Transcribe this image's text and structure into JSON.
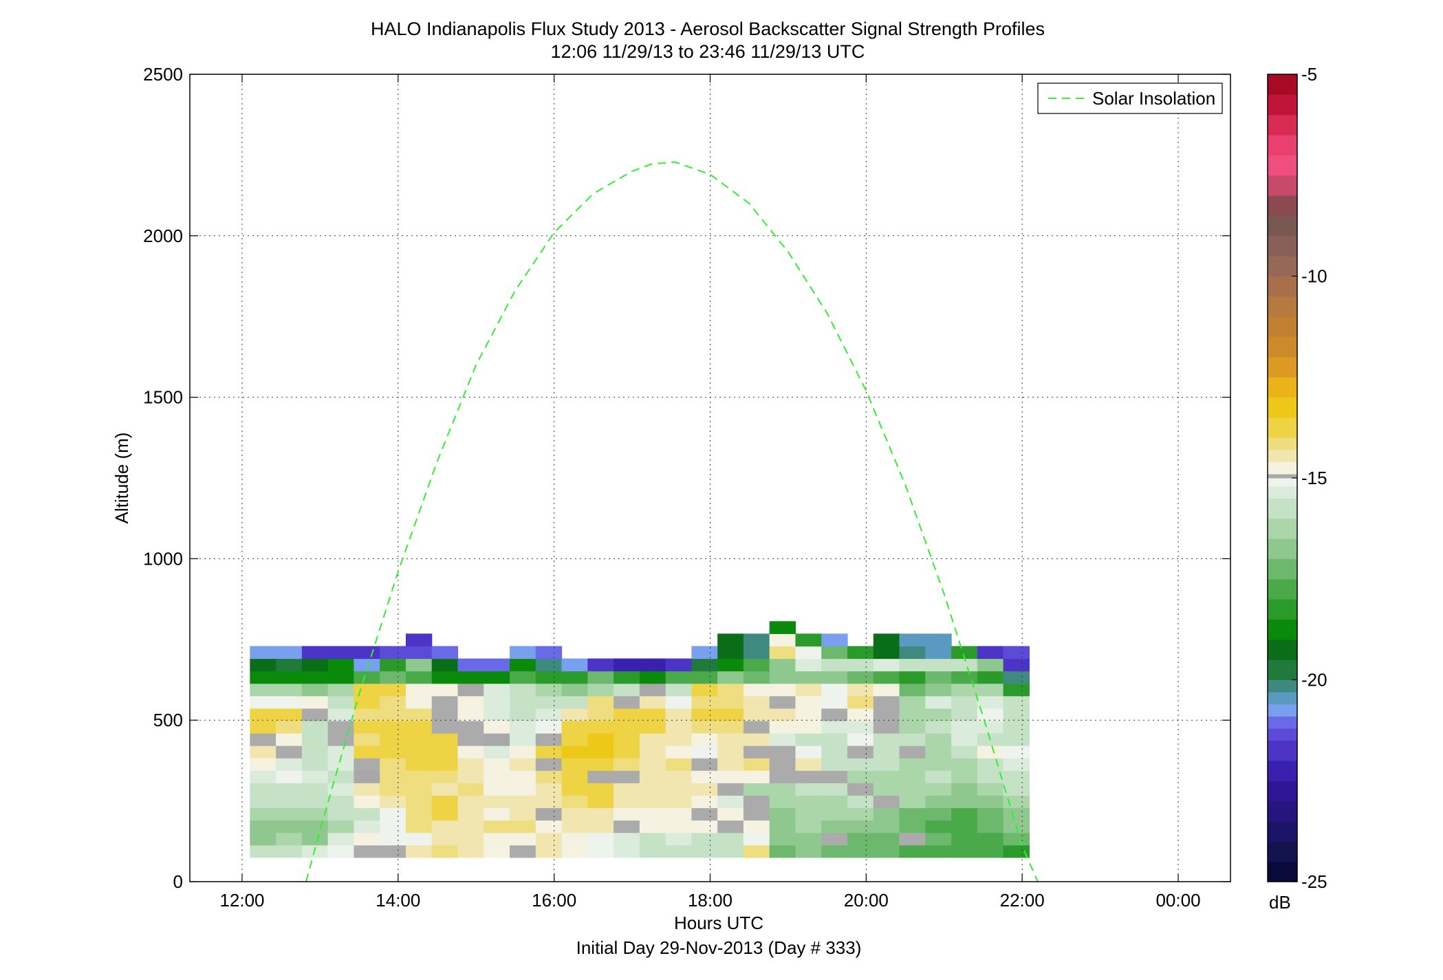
{
  "chart_data": {
    "type": "heatmap",
    "title": "HALO Indianapolis Flux Study 2013 - Aerosol Backscatter Signal Strength Profiles",
    "subtitle": "12:06 11/29/13 to 23:46 11/29/13  UTC",
    "xlabel": "Hours UTC",
    "xlabel2": "Initial Day 29-Nov-2013 (Day # 333)",
    "ylabel": "Altitude (m)",
    "x_unit": "hours UTC",
    "xlim": [
      11.33,
      24.67
    ],
    "ylim": [
      0,
      2500
    ],
    "x_ticks": [
      {
        "value": 12,
        "label": "12:00"
      },
      {
        "value": 14,
        "label": "14:00"
      },
      {
        "value": 16,
        "label": "16:00"
      },
      {
        "value": 18,
        "label": "18:00"
      },
      {
        "value": 20,
        "label": "20:00"
      },
      {
        "value": 22,
        "label": "22:00"
      },
      {
        "value": 24,
        "label": "00:00"
      }
    ],
    "y_ticks": [
      0,
      500,
      1000,
      1500,
      2000,
      2500
    ],
    "grid": true,
    "legend_position": "top-right",
    "legend": [
      {
        "label": "Solar Insolation",
        "color": "#33ee33",
        "style": "dashed"
      }
    ],
    "colorbar": {
      "label": "dB",
      "min": -25,
      "max": -5,
      "ticks": [
        -5,
        -10,
        -15,
        -20,
        -25
      ],
      "bands": [
        [
          -25,
          -24.5,
          "#0a0a3a"
        ],
        [
          -24.5,
          -24,
          "#14124f"
        ],
        [
          -24,
          -23.5,
          "#1c1466"
        ],
        [
          -23.5,
          -23,
          "#25157c"
        ],
        [
          -23,
          -22.5,
          "#2e1796"
        ],
        [
          -22.5,
          -22,
          "#3a20ae"
        ],
        [
          -22,
          -21.5,
          "#4b34c6"
        ],
        [
          -21.5,
          -21.2,
          "#5c4ad8"
        ],
        [
          -21.2,
          -20.9,
          "#6a6ae8"
        ],
        [
          -20.9,
          -20.6,
          "#78a0ee"
        ],
        [
          -20.6,
          -20.3,
          "#5a9ac0"
        ],
        [
          -20.3,
          -20,
          "#3e8a80"
        ],
        [
          -20,
          -19.5,
          "#1f7a3c"
        ],
        [
          -19.5,
          -19,
          "#0a6e18"
        ],
        [
          -19,
          -18.5,
          "#0a8a0a"
        ],
        [
          -18.5,
          -18,
          "#2a9a2a"
        ],
        [
          -18,
          -17.5,
          "#4aaa4a"
        ],
        [
          -17.5,
          -17,
          "#6cb86c"
        ],
        [
          -17,
          -16.5,
          "#8ec88e"
        ],
        [
          -16.5,
          -16,
          "#aad6aa"
        ],
        [
          -16,
          -15.5,
          "#c6e2c6"
        ],
        [
          -15.5,
          -15.2,
          "#dcecdc"
        ],
        [
          -15.2,
          -15,
          "#eef3ee"
        ],
        [
          -15,
          -14.9,
          "#a8a8a8"
        ],
        [
          -14.9,
          -14.6,
          "#f6f2e2"
        ],
        [
          -14.6,
          -14.3,
          "#f1e6b0"
        ],
        [
          -14.3,
          -14,
          "#eede80"
        ],
        [
          -14,
          -13.5,
          "#eed444"
        ],
        [
          -13.5,
          -13,
          "#eec818"
        ],
        [
          -13,
          -12.5,
          "#ecb21a"
        ],
        [
          -12.5,
          -12,
          "#dc9a22"
        ],
        [
          -12,
          -11.5,
          "#cc8a28"
        ],
        [
          -11.5,
          -11,
          "#c08030"
        ],
        [
          -11,
          -10.5,
          "#b47a3e"
        ],
        [
          -10.5,
          -10,
          "#a8704a"
        ],
        [
          -10,
          -9.5,
          "#986856"
        ],
        [
          -9.5,
          -9,
          "#886058"
        ],
        [
          -9,
          -8.5,
          "#7a5852"
        ],
        [
          -8.5,
          -8,
          "#8a4a50"
        ],
        [
          -8,
          -7.5,
          "#c84a6a"
        ],
        [
          -7.5,
          -7,
          "#f04e7e"
        ],
        [
          -7,
          -6.5,
          "#ea4070"
        ],
        [
          -6.5,
          -6,
          "#d82a52"
        ],
        [
          -6,
          -5.5,
          "#c01438"
        ],
        [
          -5.5,
          -5,
          "#a80a24"
        ]
      ]
    },
    "heatmap": {
      "x_start": 12.1,
      "x_step": 0.333,
      "y_start": 75,
      "y_step": 38.5,
      "rows_order": "bottom-to-top",
      "cols_per_row": 30,
      "values": [
        [
          -16.0,
          -15.7,
          -15.4,
          -15.2,
          -14.9,
          -14.9,
          -14.6,
          -14.2,
          -14.4,
          -14.8,
          -14.6,
          -14.6,
          -14.9,
          -15.1,
          -15.4,
          -16.0,
          -15.8,
          -15.9,
          -16.0,
          -14.1,
          -17.2,
          -17.0,
          -17.5,
          -17.5,
          -17.5,
          -17.8,
          -17.8,
          -17.8,
          -17.8,
          -18.1
        ],
        [
          -16.8,
          -16.4,
          -16.6,
          -15.4,
          -14.9,
          -15.1,
          -15.1,
          -14.6,
          -14.6,
          -14.8,
          -14.8,
          -14.6,
          -14.8,
          -15.1,
          -15.4,
          -16.0,
          -15.4,
          -15.6,
          -15.8,
          -15.2,
          -16.8,
          -16.6,
          -17.1,
          -17.3,
          -17.3,
          -17.7,
          -17.5,
          -17.7,
          -17.7,
          -17.5
        ],
        [
          -16.8,
          -16.8,
          -16.8,
          -16.4,
          -15.4,
          -15.2,
          -14.3,
          -14.5,
          -14.4,
          -14.1,
          -14.2,
          -14.9,
          -14.6,
          -14.5,
          -14.3,
          -14.8,
          -14.8,
          -14.9,
          -15.3,
          -14.7,
          -16.8,
          -16.4,
          -16.6,
          -16.9,
          -16.8,
          -17.3,
          -17.6,
          -17.7,
          -17.3,
          -16.8
        ],
        [
          -16.4,
          -16.4,
          -16.4,
          -16.0,
          -15.6,
          -15.2,
          -14.3,
          -13.9,
          -14.6,
          -14.8,
          -14.5,
          -15.0,
          -14.6,
          -14.5,
          -14.9,
          -14.8,
          -14.7,
          -14.6,
          -14.9,
          -14.7,
          -16.8,
          -16.4,
          -16.4,
          -16.4,
          -16.6,
          -17.1,
          -17.5,
          -17.7,
          -17.2,
          -16.8
        ],
        [
          -16.0,
          -16.0,
          -16.0,
          -15.6,
          -14.8,
          -14.6,
          -14.1,
          -13.7,
          -14.4,
          -14.5,
          -14.6,
          -14.5,
          -14.1,
          -14.0,
          -14.5,
          -14.6,
          -14.6,
          -14.9,
          -15.3,
          -16.6,
          -16.4,
          -16.2,
          -16.3,
          -16.0,
          -16.4,
          -16.4,
          -16.6,
          -16.8,
          -16.8,
          -16.4
        ],
        [
          -15.6,
          -15.6,
          -15.6,
          -15.3,
          -14.6,
          -14.3,
          -14.1,
          -14.4,
          -14.2,
          -14.9,
          -14.9,
          -14.6,
          -13.9,
          -13.9,
          -14.5,
          -14.4,
          -14.4,
          -14.6,
          -14.9,
          -16.2,
          -16.2,
          -15.8,
          -15.8,
          -15.6,
          -16.4,
          -16.4,
          -16.4,
          -16.6,
          -16.4,
          -15.8
        ],
        [
          -15.4,
          -15.1,
          -15.4,
          -15.6,
          -15.0,
          -14.3,
          -14.3,
          -14.2,
          -14.5,
          -14.8,
          -14.9,
          -14.1,
          -14.0,
          -14.1,
          -14.2,
          -14.4,
          -14.5,
          -14.9,
          -14.9,
          -14.9,
          -15.6,
          -14.9,
          -15.8,
          -16.2,
          -16.2,
          -16.4,
          -16.0,
          -16.4,
          -16.0,
          -15.6
        ],
        [
          -14.9,
          -15.4,
          -15.6,
          -15.3,
          -14.2,
          -14.2,
          -13.9,
          -14.0,
          -14.6,
          -14.8,
          -14.6,
          -14.1,
          -13.7,
          -13.7,
          -14.2,
          -14.4,
          -14.2,
          -14.9,
          -14.6,
          -14.3,
          -14.9,
          -14.5,
          -15.6,
          -15.6,
          -16.0,
          -16.2,
          -16.3,
          -16.2,
          -15.6,
          -15.3
        ],
        [
          -14.6,
          -14.6,
          -15.8,
          -15.4,
          -14.0,
          -14.0,
          -14.0,
          -14.0,
          -14.7,
          -15.4,
          -14.9,
          -14.0,
          -13.5,
          -13.5,
          -13.9,
          -14.6,
          -14.9,
          -15.2,
          -14.5,
          -14.4,
          -14.9,
          -15.2,
          -15.6,
          -15.6,
          -15.8,
          -15.6,
          -16.4,
          -15.8,
          -14.9,
          -15.1
        ],
        [
          -14.2,
          -14.9,
          -15.7,
          -16.0,
          -14.3,
          -13.6,
          -13.6,
          -13.8,
          -14.3,
          -15.0,
          -15.3,
          -14.7,
          -13.6,
          -13.5,
          -13.8,
          -14.6,
          -14.6,
          -14.9,
          -14.5,
          -14.6,
          -15.4,
          -15.6,
          -15.8,
          -15.2,
          -15.8,
          -15.8,
          -16.2,
          -15.4,
          -15.6,
          -15.8
        ],
        [
          -13.8,
          -14.1,
          -15.7,
          -15.2,
          -13.9,
          -13.7,
          -13.8,
          -14.1,
          -14.4,
          -14.8,
          -15.5,
          -15.2,
          -13.9,
          -13.6,
          -13.6,
          -13.8,
          -14.6,
          -14.2,
          -14.2,
          -14.2,
          -14.7,
          -14.9,
          -15.4,
          -15.3,
          -15.6,
          -16.4,
          -15.8,
          -15.5,
          -15.4,
          -15.6
        ],
        [
          -13.6,
          -14.0,
          -14.9,
          -15.3,
          -14.1,
          -14.1,
          -14.3,
          -14.8,
          -14.9,
          -15.5,
          -15.8,
          -15.5,
          -14.4,
          -14.2,
          -13.8,
          -14.0,
          -14.6,
          -13.9,
          -14.0,
          -14.4,
          -14.6,
          -14.8,
          -14.9,
          -14.8,
          -15.6,
          -16.3,
          -16.4,
          -15.7,
          -15.1,
          -15.6
        ],
        [
          -15.2,
          -15.2,
          -14.9,
          -15.6,
          -13.7,
          -14.1,
          -14.7,
          -14.9,
          -14.9,
          -15.5,
          -15.8,
          -15.8,
          -15.6,
          -14.3,
          -14.0,
          -14.4,
          -15.2,
          -14.2,
          -14.2,
          -14.6,
          -14.9,
          -14.9,
          -15.2,
          -14.3,
          -15.2,
          -16.2,
          -15.4,
          -15.7,
          -15.5,
          -15.6
        ],
        [
          -16.4,
          -16.4,
          -16.8,
          -16.4,
          -13.9,
          -14.0,
          -14.7,
          -14.9,
          -15.0,
          -15.3,
          -15.6,
          -16.2,
          -17.0,
          -16.4,
          -15.6,
          -15.0,
          -16.0,
          -14.0,
          -14.1,
          -14.7,
          -14.9,
          -14.6,
          -15.2,
          -14.6,
          -14.9,
          -17.2,
          -16.6,
          -16.4,
          -16.2,
          -18.3
        ],
        [
          -18.8,
          -18.8,
          -19.0,
          -19.0,
          -18.0,
          -17.5,
          -18.0,
          -18.6,
          -18.6,
          -18.8,
          -17.8,
          -18.4,
          -18.4,
          -17.5,
          -18.4,
          -18.6,
          -18.0,
          -17.8,
          -16.8,
          -17.2,
          -17.0,
          -16.9,
          -17.0,
          -17.5,
          -17.8,
          -18.2,
          -17.4,
          -18.0,
          -18.2,
          -20.1
        ],
        [
          -19.3,
          -19.6,
          -19.1,
          -18.9,
          -20.9,
          -18.2,
          -17.0,
          -19.2,
          -21.0,
          -21.0,
          -19.0,
          -20.3,
          -20.9,
          -21.8,
          -22.4,
          -22.5,
          -21.8,
          -19.8,
          -18.6,
          -17.6,
          -16.6,
          -15.5,
          -15.9,
          -16.0,
          -15.4,
          -15.9,
          -16.0,
          -16.0,
          -16.8,
          -21.7
        ],
        [
          -20.8,
          -20.8,
          -21.7,
          -21.8,
          -21.8,
          -21.3,
          -21.3,
          -21.2,
          -999,
          -999,
          -20.8,
          -21.2,
          -999,
          -999,
          -999,
          -999,
          -999,
          -20.9,
          -19.3,
          -20.2,
          -14.1,
          -15.2,
          -17.4,
          -18.4,
          -19.3,
          -20.2,
          -20.6,
          -18.4,
          -21.6,
          -21.3
        ],
        [
          -999,
          -999,
          -999,
          -999,
          -999,
          -999,
          -21.6,
          -999,
          -999,
          -999,
          -999,
          -999,
          -999,
          -999,
          -999,
          -999,
          -999,
          -999,
          -19.5,
          -20.1,
          -14.8,
          -18.4,
          -20.9,
          -999,
          -19.4,
          -20.5,
          -20.4,
          -999,
          -999,
          -999
        ],
        [
          -999,
          -999,
          -999,
          -999,
          -999,
          -999,
          -999,
          -999,
          -999,
          -999,
          -999,
          -999,
          -999,
          -999,
          -999,
          -999,
          -999,
          -999,
          -999,
          -999,
          -18.8,
          -999,
          -999,
          -999,
          -999,
          -999,
          -999,
          -999,
          -999,
          -999
        ]
      ],
      "gray_cells": [
        [
          0,
          4
        ],
        [
          0,
          5
        ],
        [
          0,
          10
        ],
        [
          1,
          22
        ],
        [
          1,
          25
        ],
        [
          2,
          14
        ],
        [
          2,
          18
        ],
        [
          3,
          17
        ],
        [
          3,
          19
        ],
        [
          4,
          19
        ],
        [
          4,
          24
        ],
        [
          5,
          18
        ],
        [
          5,
          23
        ],
        [
          6,
          13
        ],
        [
          6,
          14
        ],
        [
          6,
          20
        ],
        [
          6,
          21
        ],
        [
          6,
          22
        ],
        [
          7,
          4
        ],
        [
          7,
          11
        ],
        [
          7,
          17
        ],
        [
          7,
          20
        ],
        [
          8,
          1
        ],
        [
          8,
          19
        ],
        [
          8,
          20
        ],
        [
          8,
          23
        ],
        [
          8,
          25
        ],
        [
          9,
          0
        ],
        [
          9,
          3
        ],
        [
          9,
          8
        ],
        [
          9,
          11
        ],
        [
          10,
          3
        ],
        [
          10,
          7
        ],
        [
          10,
          8
        ],
        [
          10,
          19
        ],
        [
          10,
          24
        ],
        [
          11,
          2
        ],
        [
          11,
          7
        ],
        [
          11,
          22
        ],
        [
          11,
          24
        ],
        [
          12,
          7
        ],
        [
          12,
          14
        ],
        [
          12,
          20
        ],
        [
          12,
          24
        ]
      ]
    },
    "series": [
      {
        "name": "Solar Insolation",
        "x": [
          12.82,
          13.0,
          13.5,
          14.0,
          14.5,
          15.0,
          15.5,
          16.0,
          16.5,
          17.0,
          17.25,
          17.55,
          18.0,
          18.5,
          19.0,
          19.5,
          20.0,
          20.5,
          21.0,
          21.5,
          22.0,
          22.2
        ],
        "y": [
          0,
          160,
          580,
          960,
          1300,
          1600,
          1830,
          2010,
          2130,
          2200,
          2222,
          2228,
          2190,
          2100,
          1950,
          1760,
          1520,
          1230,
          890,
          510,
          110,
          0
        ]
      }
    ]
  }
}
